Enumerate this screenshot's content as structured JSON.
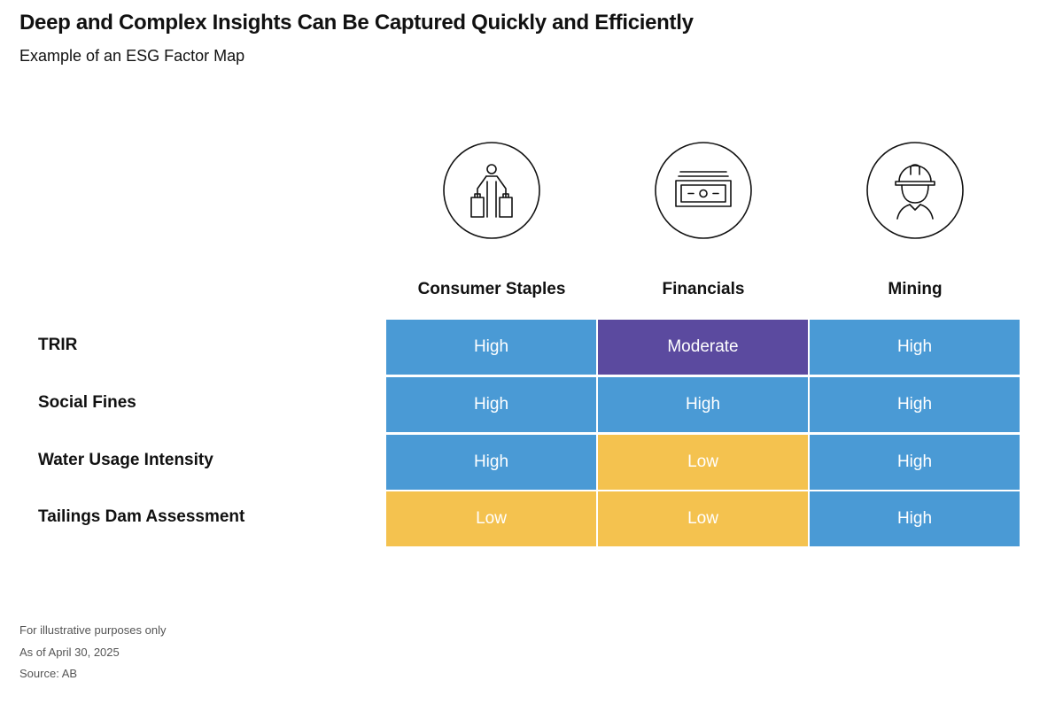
{
  "title": "Deep and Complex Insights Can Be Captured Quickly and Efficiently",
  "subtitle": "Example of an ESG Factor Map",
  "icons": [
    "shopper-icon",
    "banknote-icon",
    "miner-helmet-icon"
  ],
  "colors": {
    "High": "#4a9ad5",
    "Moderate": "#5b4a9f",
    "Low": "#f4c24f"
  },
  "chart_data": {
    "type": "table",
    "columns": [
      "Consumer Staples",
      "Financials",
      "Mining"
    ],
    "rows": [
      "TRIR",
      "Social Fines",
      "Water Usage Intensity",
      "Tailings Dam Assessment"
    ],
    "values": [
      [
        "High",
        "Moderate",
        "High"
      ],
      [
        "High",
        "High",
        "High"
      ],
      [
        "High",
        "Low",
        "High"
      ],
      [
        "Low",
        "Low",
        "High"
      ]
    ]
  },
  "notes": {
    "illustrative": "For illustrative purposes only",
    "as_of": "As of April 30, 2025",
    "source": "Source: AB"
  }
}
